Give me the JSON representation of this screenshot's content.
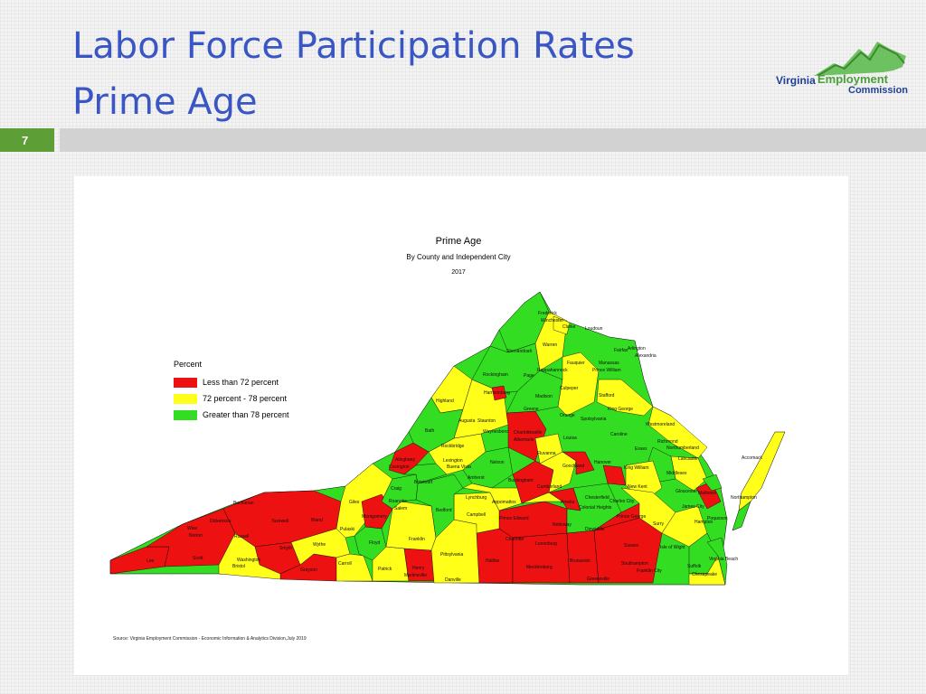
{
  "title_line1": "Labor Force Participation Rates",
  "title_line2": "Prime Age",
  "slide_number": "7",
  "logo": {
    "word1": "Virginia",
    "word2": "Employment",
    "word3": "Commission"
  },
  "map": {
    "title": "Prime Age",
    "subtitle": "By County and Independent City",
    "year": "2017",
    "legend_title": "Percent",
    "legend": [
      {
        "label": "Less than 72 percent",
        "color": "#ee1111"
      },
      {
        "label": "72 percent - 78 percent",
        "color": "#ffff1a"
      },
      {
        "label": "Greater than 78 percent",
        "color": "#33dd22"
      }
    ],
    "source": "Source: Virginia Employment Commission - Economic Information & Analytics Division,July 2019",
    "labels": {
      "frederick": "Frederick",
      "winchester": "Winchester",
      "clarke": "Clarke",
      "loudoun": "Loudoun",
      "warren": "Warren",
      "shenandoah": "Shenandoah",
      "arlington": "Arlington",
      "alexandria": "Alexandria",
      "fairfax": "Fairfax",
      "fauquier": "Fauquier",
      "manassas": "Manassas",
      "prince_william": "Prince William",
      "rappahannock": "Rappahannock",
      "rockingham": "Rockingham",
      "page": "Page",
      "culpeper": "Culpeper",
      "stafford": "Stafford",
      "harrisonburg": "Harrisonburg",
      "madison": "Madison",
      "highland": "Highland",
      "greene": "Greene",
      "king_george": "King George",
      "orange": "Orange",
      "spotsylvania": "Spotsylvania",
      "westmoreland": "Westmoreland",
      "augusta": "Augusta",
      "staunton": "Staunton",
      "waynesboro": "Waynesboro",
      "charlottesville": "Charlottesville",
      "albemarle": "Albemarle",
      "caroline": "Caroline",
      "bath": "Bath",
      "louisa": "Louisa",
      "essex": "Essex",
      "richmond": "Richmond",
      "northumberland": "Northumberland",
      "rockbridge": "Rockbridge",
      "fluvanna": "Fluvanna",
      "lancaster": "Lancaster",
      "alleghany": "Alleghany",
      "covington": "Covington",
      "lexington": "Lexington",
      "buena_vista": "Buena Vista",
      "nelson": "Nelson",
      "hanover": "Hanover",
      "king_william": "King William",
      "middlesex": "Middlesex",
      "goochland": "Goochland",
      "amherst": "Amherst",
      "buckingham": "Buckingham",
      "cumberland": "Cumberland",
      "botetourt": "Botetourt",
      "new_kent": "New Kent",
      "gloucester": "Gloucester",
      "mathews": "Mathews",
      "craig": "Craig",
      "lynchburg": "Lynchburg",
      "appomattox": "Appomattox",
      "chesterfield": "Chesterfield",
      "amelia": "Amelia",
      "charles_city": "Charles City",
      "roanoke": "Roanoke",
      "salem": "Salem",
      "bedford": "Bedford",
      "giles": "Giles",
      "colonial_heights": "Colonial Heights",
      "prince_george": "Prince George",
      "campbell": "Campbell",
      "prince_edward": "Prince Edward",
      "surry": "Surry",
      "northampton": "Northampton",
      "accomack": "Accomack",
      "montgomery": "Montgomery",
      "pulaski": "Pulaski",
      "bland": "Bland",
      "tazewell": "Tazewell",
      "buchanan": "Buchanan",
      "dickenson": "Dickenson",
      "wise": "Wise",
      "norton": "Norton",
      "russell": "Russell",
      "lee": "Lee",
      "scott": "Scott",
      "washington": "Washington",
      "bristol": "Bristol",
      "smyth": "Smyth",
      "wythe": "Wythe",
      "carroll": "Carroll",
      "grayson": "Grayson",
      "floyd": "Floyd",
      "franklin": "Franklin",
      "patrick": "Patrick",
      "henry": "Henry",
      "martinsville": "Martinsville",
      "pittsylvania": "Pittsylvania",
      "danville": "Danville",
      "halifax": "Halifax",
      "charlotte": "Charlotte",
      "lunenburg": "Lunenburg",
      "nottoway": "Nottoway",
      "dinwiddie": "Dinwiddie",
      "mecklenburg": "Mecklenburg",
      "brunswick": "Brunswick",
      "greensville": "Greensville",
      "sussex": "Sussex",
      "southampton": "Southampton",
      "franklin_city": "Franklin City",
      "isle_of_wight": "Isle of Wight",
      "suffolk": "Suffolk",
      "chesapeake": "Chesapeake",
      "virginia_beach": "Virginia Beach",
      "hampton": "Hampton",
      "poquoson": "Poquoson",
      "james_city": "James City"
    }
  }
}
